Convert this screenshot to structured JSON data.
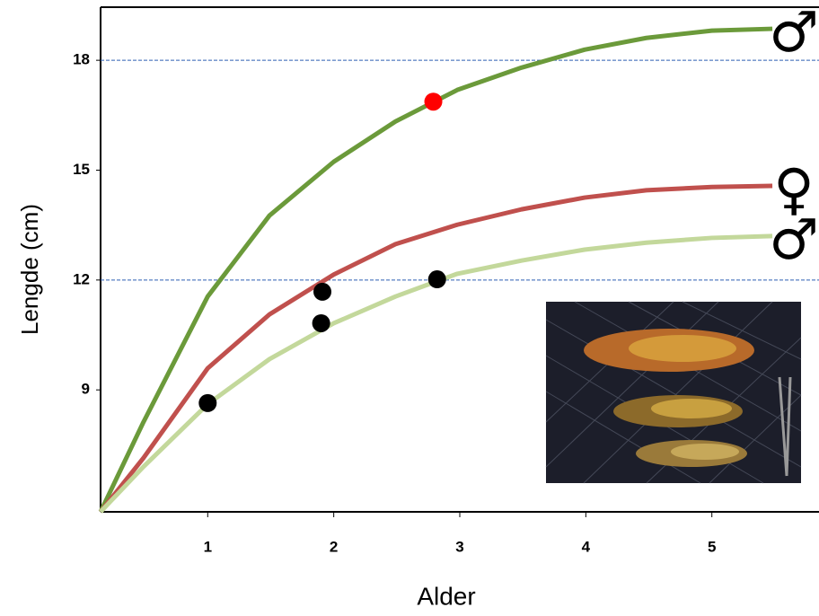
{
  "chart_data": {
    "type": "line",
    "x_label": "Alder",
    "y_label": "Lengde (cm)",
    "xlim": [
      0.15,
      5.85
    ],
    "ylim": [
      5.67,
      19.45
    ],
    "xticks": [
      1,
      2,
      3,
      4,
      5
    ],
    "yticks": [
      9,
      12,
      15,
      18
    ],
    "hlines": [
      12,
      18
    ],
    "hline_color": "#2f5fb3",
    "series": [
      {
        "name": "♂",
        "color": "#6b9a3a",
        "x": [
          0.15,
          0.49,
          1,
          1.49,
          2,
          2.49,
          2.98,
          3.49,
          3.99,
          4.48,
          5,
          5.48
        ],
        "values": [
          5.67,
          8.12,
          11.55,
          13.76,
          15.23,
          16.33,
          17.19,
          17.8,
          18.29,
          18.61,
          18.81,
          18.86
        ]
      },
      {
        "name": "♀",
        "color": "#c0504d",
        "x": [
          0.15,
          0.49,
          1,
          1.49,
          2,
          2.49,
          2.98,
          3.49,
          3.99,
          4.48,
          5,
          5.48
        ],
        "values": [
          5.67,
          7.14,
          9.59,
          11.06,
          12.15,
          12.98,
          13.51,
          13.93,
          14.25,
          14.45,
          14.54,
          14.57
        ]
      },
      {
        "name": "♂",
        "color": "#c3d89b",
        "x": [
          0.15,
          0.49,
          1,
          1.49,
          2,
          2.49,
          2.98,
          3.49,
          3.99,
          4.48,
          5,
          5.48
        ],
        "values": [
          5.67,
          6.9,
          8.61,
          9.84,
          10.82,
          11.55,
          12.17,
          12.53,
          12.83,
          13.02,
          13.15,
          13.2
        ]
      }
    ],
    "points": {
      "x": [
        1,
        1.91,
        1.9,
        2.82,
        2.79
      ],
      "y": [
        8.64,
        11.68,
        10.82,
        12.02,
        16.87
      ],
      "colors": [
        "#000000",
        "#000000",
        "#000000",
        "#000000",
        "#ff0000"
      ]
    }
  }
}
